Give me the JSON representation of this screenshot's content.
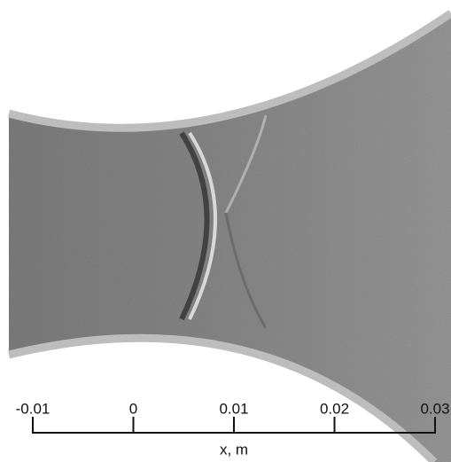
{
  "image": {
    "xaxis": {
      "label": "x, m",
      "xlim": [
        -0.01,
        0.03
      ],
      "xticks": [
        -0.01,
        0,
        0.01,
        0.02,
        0.03
      ]
    }
  }
}
